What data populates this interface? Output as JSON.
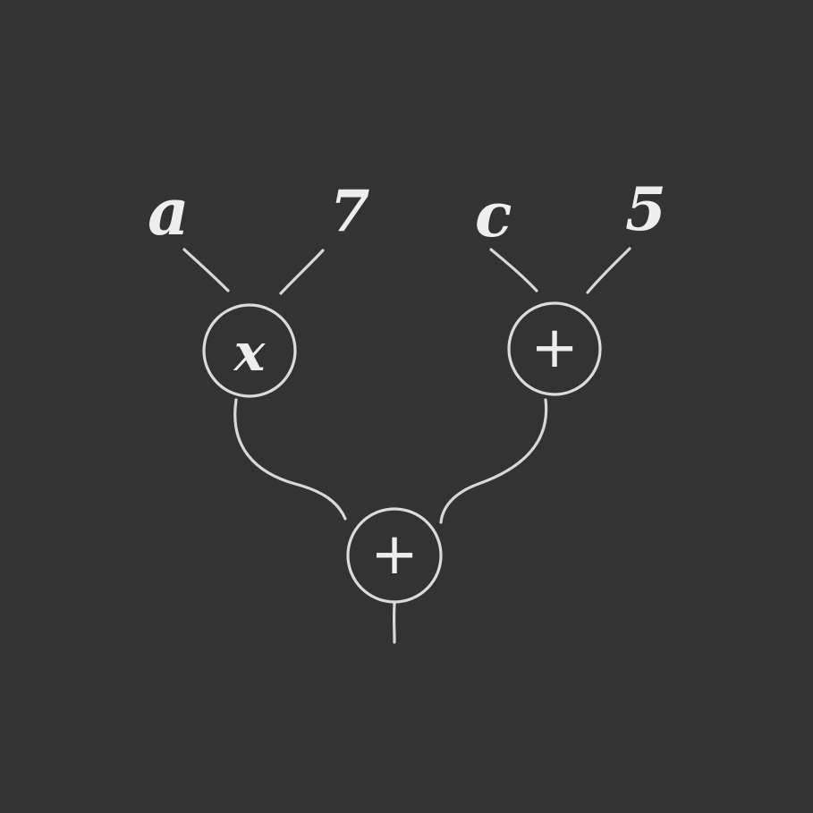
{
  "diagram": {
    "inputs": {
      "a": "a",
      "seven": "7",
      "c": "c",
      "five": "5"
    },
    "nodes": {
      "left_operator": "x",
      "right_operator": "+",
      "bottom_operator": "+"
    },
    "colors": {
      "background": "#333333",
      "chalk": "#e6e6e6"
    }
  }
}
